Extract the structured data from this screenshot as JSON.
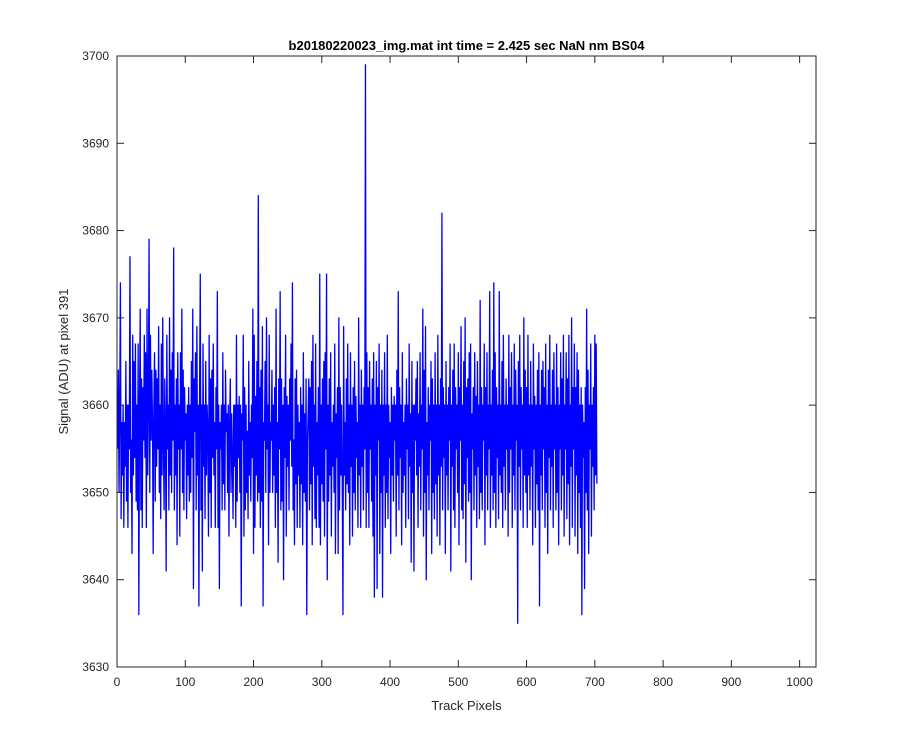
{
  "chart_data": {
    "type": "line",
    "title": "b20180220023_img.mat int time = 2.425 sec  NaN nm BS04",
    "xlabel": "Track Pixels",
    "ylabel": "Signal (ADU) at pixel 391",
    "xlim": [
      0,
      1024
    ],
    "ylim": [
      3630,
      3700
    ],
    "x_ticks": [
      0,
      100,
      200,
      300,
      400,
      500,
      600,
      700,
      800,
      900,
      1000
    ],
    "y_ticks": [
      3630,
      3640,
      3650,
      3660,
      3670,
      3680,
      3690,
      3700
    ],
    "grid": false,
    "legend": "none",
    "series": [
      {
        "color": "#0000ff",
        "x_start": 1,
        "x_step": 1,
        "values": [
          3655,
          3664,
          3650,
          3660,
          3674,
          3647,
          3658,
          3652,
          3660,
          3646,
          3658,
          3653,
          3665,
          3649,
          3660,
          3646,
          3660,
          3655,
          3677,
          3650,
          3656,
          3643,
          3668,
          3652,
          3665,
          3654,
          3667,
          3649,
          3660,
          3648,
          3667,
          3636,
          3660,
          3671,
          3648,
          3663,
          3646,
          3662,
          3656,
          3668,
          3654,
          3666,
          3646,
          3671,
          3652,
          3660,
          3679,
          3650,
          3668,
          3656,
          3664,
          3658,
          3643,
          3660,
          3666,
          3649,
          3664,
          3653,
          3663,
          3655,
          3669,
          3650,
          3660,
          3647,
          3667,
          3652,
          3670,
          3656,
          3648,
          3663,
          3657,
          3641,
          3668,
          3655,
          3660,
          3648,
          3670,
          3652,
          3664,
          3650,
          3666,
          3656,
          3678,
          3648,
          3660,
          3652,
          3663,
          3644,
          3666,
          3655,
          3660,
          3645,
          3666,
          3655,
          3671,
          3650,
          3664,
          3648,
          3662,
          3656,
          3659,
          3647,
          3660,
          3652,
          3662,
          3649,
          3660,
          3650,
          3665,
          3654,
          3671,
          3639,
          3663,
          3657,
          3666,
          3648,
          3669,
          3652,
          3660,
          3637,
          3662,
          3675,
          3648,
          3660,
          3641,
          3667,
          3653,
          3660,
          3647,
          3665,
          3652,
          3660,
          3657,
          3645,
          3668,
          3650,
          3663,
          3646,
          3664,
          3654,
          3667,
          3652,
          3658,
          3646,
          3662,
          3655,
          3673,
          3646,
          3660,
          3639,
          3658,
          3655,
          3660,
          3648,
          3666,
          3651,
          3660,
          3648,
          3664,
          3657,
          3659,
          3650,
          3660,
          3645,
          3658,
          3663,
          3650,
          3659,
          3654,
          3647,
          3660,
          3653,
          3660,
          3646,
          3668,
          3649,
          3660,
          3654,
          3661,
          3650,
          3660,
          3637,
          3659,
          3656,
          3668,
          3645,
          3662,
          3648,
          3660,
          3650,
          3657,
          3647,
          3665,
          3652,
          3658,
          3649,
          3660,
          3654,
          3671,
          3643,
          3668,
          3646,
          3661,
          3652,
          3665,
          3649,
          3684,
          3650,
          3662,
          3646,
          3664,
          3649,
          3669,
          3637,
          3658,
          3656,
          3665,
          3650,
          3670,
          3655,
          3660,
          3644,
          3668,
          3650,
          3658,
          3656,
          3664,
          3650,
          3660,
          3652,
          3662,
          3646,
          3671,
          3650,
          3658,
          3642,
          3663,
          3655,
          3673,
          3648,
          3663,
          3649,
          3660,
          3640,
          3662,
          3654,
          3668,
          3645,
          3661,
          3653,
          3660,
          3648,
          3663,
          3656,
          3667,
          3653,
          3674,
          3648,
          3656,
          3644,
          3663,
          3651,
          3664,
          3646,
          3660,
          3652,
          3658,
          3646,
          3662,
          3651,
          3660,
          3644,
          3666,
          3650,
          3659,
          3649,
          3663,
          3636,
          3656,
          3659,
          3663,
          3648,
          3662,
          3651,
          3665,
          3644,
          3668,
          3653,
          3660,
          3647,
          3667,
          3646,
          3658,
          3652,
          3662,
          3646,
          3675,
          3644,
          3660,
          3651,
          3663,
          3649,
          3665,
          3645,
          3666,
          3655,
          3675,
          3640,
          3660,
          3649,
          3663,
          3652,
          3666,
          3645,
          3658,
          3653,
          3660,
          3650,
          3667,
          3643,
          3659,
          3654,
          3662,
          3643,
          3670,
          3648,
          3662,
          3652,
          3660,
          3651,
          3636,
          3669,
          3652,
          3658,
          3648,
          3663,
          3651,
          3667,
          3650,
          3660,
          3644,
          3666,
          3653,
          3660,
          3645,
          3662,
          3650,
          3665,
          3648,
          3661,
          3654,
          3658,
          3646,
          3670,
          3652,
          3660,
          3646,
          3664,
          3653,
          3660,
          3648,
          3662,
          3655,
          3699,
          3646,
          3666,
          3650,
          3662,
          3646,
          3665,
          3655,
          3660,
          3649,
          3663,
          3645,
          3666,
          3638,
          3660,
          3652,
          3665,
          3639,
          3662,
          3656,
          3667,
          3643,
          3660,
          3650,
          3664,
          3638,
          3660,
          3652,
          3666,
          3646,
          3660,
          3650,
          3668,
          3647,
          3660,
          3654,
          3658,
          3643,
          3662,
          3652,
          3660,
          3649,
          3661,
          3656,
          3660,
          3645,
          3664,
          3652,
          3673,
          3648,
          3662,
          3654,
          3660,
          3644,
          3666,
          3650,
          3658,
          3652,
          3660,
          3646,
          3663,
          3655,
          3660,
          3647,
          3667,
          3653,
          3659,
          3642,
          3665,
          3650,
          3660,
          3641,
          3660,
          3656,
          3663,
          3652,
          3665,
          3646,
          3659,
          3653,
          3666,
          3648,
          3660,
          3655,
          3671,
          3645,
          3664,
          3650,
          3669,
          3640,
          3658,
          3652,
          3662,
          3648,
          3660,
          3656,
          3665,
          3643,
          3663,
          3650,
          3660,
          3647,
          3666,
          3651,
          3660,
          3645,
          3668,
          3652,
          3660,
          3644,
          3663,
          3653,
          3682,
          3648,
          3662,
          3654,
          3660,
          3643,
          3665,
          3652,
          3660,
          3648,
          3662,
          3656,
          3667,
          3641,
          3660,
          3653,
          3664,
          3648,
          3667,
          3646,
          3662,
          3655,
          3660,
          3650,
          3666,
          3644,
          3662,
          3656,
          3669,
          3648,
          3660,
          3647,
          3665,
          3651,
          3670,
          3642,
          3662,
          3654,
          3663,
          3649,
          3666,
          3650,
          3667,
          3640,
          3659,
          3655,
          3662,
          3648,
          3666,
          3652,
          3661,
          3646,
          3665,
          3653,
          3660,
          3647,
          3672,
          3650,
          3662,
          3648,
          3660,
          3656,
          3667,
          3644,
          3662,
          3652,
          3666,
          3648,
          3660,
          3655,
          3673,
          3646,
          3660,
          3652,
          3664,
          3648,
          3674,
          3650,
          3666,
          3646,
          3662,
          3654,
          3660,
          3647,
          3673,
          3652,
          3660,
          3650,
          3665,
          3646,
          3668,
          3653,
          3660,
          3648,
          3663,
          3655,
          3660,
          3645,
          3668,
          3650,
          3662,
          3655,
          3666,
          3646,
          3660,
          3652,
          3667,
          3648,
          3664,
          3656,
          3660,
          3635,
          3665,
          3653,
          3668,
          3648,
          3662,
          3655,
          3660,
          3646,
          3670,
          3652,
          3664,
          3650,
          3662,
          3646,
          3668,
          3652,
          3660,
          3648,
          3665,
          3653,
          3660,
          3644,
          3667,
          3655,
          3661,
          3646,
          3660,
          3651,
          3664,
          3648,
          3666,
          3637,
          3660,
          3652,
          3664,
          3648,
          3665,
          3655,
          3662,
          3646,
          3667,
          3650,
          3660,
          3643,
          3664,
          3654,
          3668,
          3648,
          3660,
          3653,
          3664,
          3646,
          3666,
          3655,
          3660,
          3648,
          3667,
          3650,
          3662,
          3644,
          3660,
          3655,
          3666,
          3648,
          3663,
          3652,
          3668,
          3645,
          3660,
          3655,
          3666,
          3647,
          3663,
          3651,
          3668,
          3644,
          3660,
          3653,
          3670,
          3646,
          3662,
          3655,
          3667,
          3645,
          3662,
          3652,
          3666,
          3643,
          3664,
          3650,
          3660,
          3646,
          3662,
          3636,
          3660,
          3654,
          3658,
          3639,
          3662,
          3650,
          3671,
          3648,
          3664,
          3643,
          3660,
          3655,
          3667,
          3645,
          3660,
          3653,
          3662,
          3648,
          3668,
          3652,
          3667,
          3651
        ]
      }
    ]
  }
}
